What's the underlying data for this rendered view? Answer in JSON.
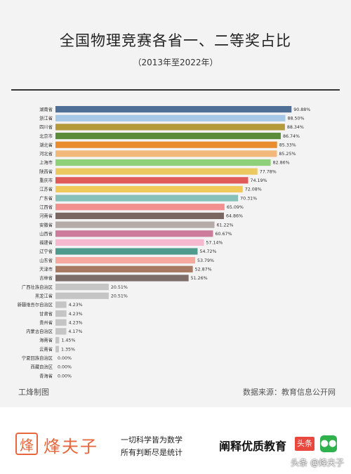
{
  "header": {
    "title": "全国物理竞赛各省一、二等奖占比",
    "subtitle": "（2013年至2022年）"
  },
  "chart_data": {
    "type": "bar",
    "orientation": "horizontal",
    "title": "全国物理竞赛各省一、二等奖占比",
    "subtitle": "（2013年至2022年）",
    "xlabel": "",
    "ylabel": "",
    "xlim": [
      0,
      100
    ],
    "value_suffix": "%",
    "grid": false,
    "categories": [
      "湖南省",
      "浙江省",
      "四川省",
      "北京市",
      "湖北省",
      "河北省",
      "上海市",
      "陕西省",
      "重庆市",
      "江苏省",
      "广东省",
      "江西省",
      "河南省",
      "安徽省",
      "山西省",
      "福建省",
      "辽宁省",
      "山东省",
      "天津市",
      "吉林省",
      "广西壮族自治区",
      "黑龙江省",
      "新疆维吾尔自治区",
      "甘肃省",
      "贵州省",
      "内蒙古自治区",
      "海南省",
      "云南省",
      "宁夏回族自治区",
      "西藏自治区",
      "青海省"
    ],
    "values": [
      90.88,
      88.5,
      88.34,
      86.74,
      85.33,
      85.25,
      82.86,
      77.78,
      74.19,
      72.08,
      70.31,
      65.09,
      64.86,
      61.22,
      60.67,
      57.14,
      54.72,
      53.79,
      52.87,
      51.26,
      20.51,
      20.51,
      4.23,
      4.23,
      4.23,
      4.17,
      1.45,
      1.35,
      0.0,
      0.0,
      0.0
    ],
    "labels": [
      "90.88%",
      "88.50%",
      "88.34%",
      "86.74%",
      "85.33%",
      "85.25%",
      "82.86%",
      "77.78%",
      "74.19%",
      "72.08%",
      "70.31%",
      "65.09%",
      "64.86%",
      "61.22%",
      "60.67%",
      "57.14%",
      "54.72%",
      "53.79%",
      "52.87%",
      "51.26%",
      "20.51%",
      "20.51%",
      "4.23%",
      "4.23%",
      "4.23%",
      "4.17%",
      "1.45%",
      "1.35%",
      "0.00%",
      "0.00%",
      "0.00%"
    ],
    "colors": [
      "#4f6f96",
      "#a6c8e6",
      "#b59a3a",
      "#5b8c3a",
      "#e98b2f",
      "#f2b77a",
      "#8ecf7a",
      "#ecc860",
      "#e15a5a",
      "#f0c95a",
      "#86c0b8",
      "#f38f8f",
      "#7a6762",
      "#b5aca8",
      "#cc7c9a",
      "#f5b8cf",
      "#4e9a8c",
      "#f7a9a0",
      "#a87a63",
      "#7d6e6a",
      "#c5c5c5",
      "#c5c5c5",
      "#c5c5c5",
      "#c5c5c5",
      "#c5c5c5",
      "#c5c5c5",
      "#c5c5c5",
      "#c5c5c5",
      "#c5c5c5",
      "#c5c5c5",
      "#c5c5c5"
    ]
  },
  "footer": {
    "left_credit": "工烽制图",
    "source": "数据来源：教育信息公开网"
  },
  "brand": {
    "logo_glyph": "烽",
    "name": "烽夫子",
    "slogan_line1": "一切科学皆为数学",
    "slogan_line2": "所有判断尽是统计",
    "tagline": "阐释优质教育",
    "platform_badge": "头条",
    "wechat_icon": "wechat-icon",
    "watermark": "头条 @烽夫子",
    "accent": "#e8663d"
  }
}
